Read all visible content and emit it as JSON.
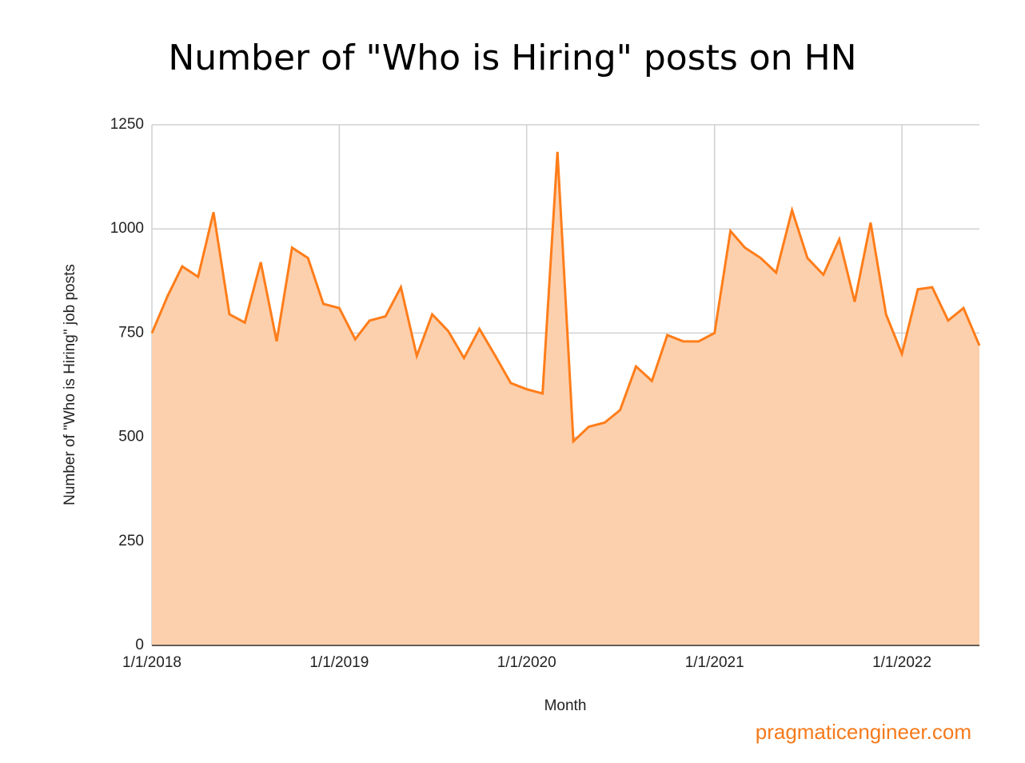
{
  "chart_data": {
    "type": "area",
    "title": "Number of \"Who is Hiring\" posts on HN",
    "x_label": "Month",
    "y_label": "Number of \"Who is Hiring\" job posts",
    "watermark": "pragmaticengineer.com",
    "x": [
      "2018-01-01",
      "2018-02-01",
      "2018-03-01",
      "2018-04-01",
      "2018-05-01",
      "2018-06-01",
      "2018-07-01",
      "2018-08-01",
      "2018-09-01",
      "2018-10-01",
      "2018-11-01",
      "2018-12-01",
      "2019-01-01",
      "2019-02-01",
      "2019-03-01",
      "2019-04-01",
      "2019-05-01",
      "2019-06-01",
      "2019-07-01",
      "2019-08-01",
      "2019-09-01",
      "2019-10-01",
      "2019-11-01",
      "2019-12-01",
      "2020-01-01",
      "2020-02-01",
      "2020-03-01",
      "2020-04-01",
      "2020-05-01",
      "2020-06-01",
      "2020-07-01",
      "2020-08-01",
      "2020-09-01",
      "2020-10-01",
      "2020-11-01",
      "2020-12-01",
      "2021-01-01",
      "2021-02-01",
      "2021-03-01",
      "2021-04-01",
      "2021-05-01",
      "2021-06-01",
      "2021-07-01",
      "2021-08-01",
      "2021-09-01",
      "2021-10-01",
      "2021-11-01",
      "2021-12-01",
      "2022-01-01",
      "2022-02-01",
      "2022-03-01",
      "2022-04-01",
      "2022-05-01",
      "2022-06-01"
    ],
    "series": [
      {
        "name": "Who is Hiring posts",
        "color": "#ff7d1a",
        "fill": "#fdd0ad",
        "values": [
          750,
          840,
          910,
          885,
          1040,
          795,
          775,
          920,
          730,
          955,
          930,
          820,
          810,
          735,
          780,
          790,
          860,
          695,
          795,
          755,
          690,
          760,
          695,
          630,
          615,
          605,
          1185,
          490,
          525,
          535,
          565,
          670,
          635,
          745,
          730,
          730,
          750,
          995,
          955,
          930,
          895,
          1045,
          930,
          890,
          975,
          825,
          1015,
          795,
          700,
          855,
          860,
          780,
          810,
          720
        ]
      }
    ],
    "xlim": [
      "2018-01-01",
      "2022-06-01"
    ],
    "xticks": [
      {
        "value": "2018-01-01",
        "label": "1/1/2018"
      },
      {
        "value": "2019-01-01",
        "label": "1/1/2019"
      },
      {
        "value": "2020-01-01",
        "label": "1/1/2020"
      },
      {
        "value": "2021-01-01",
        "label": "1/1/2021"
      },
      {
        "value": "2022-01-01",
        "label": "1/1/2022"
      }
    ],
    "ylim": [
      0,
      1250
    ],
    "yticks": [
      0,
      250,
      500,
      750,
      1000,
      1250
    ],
    "grid": true
  }
}
